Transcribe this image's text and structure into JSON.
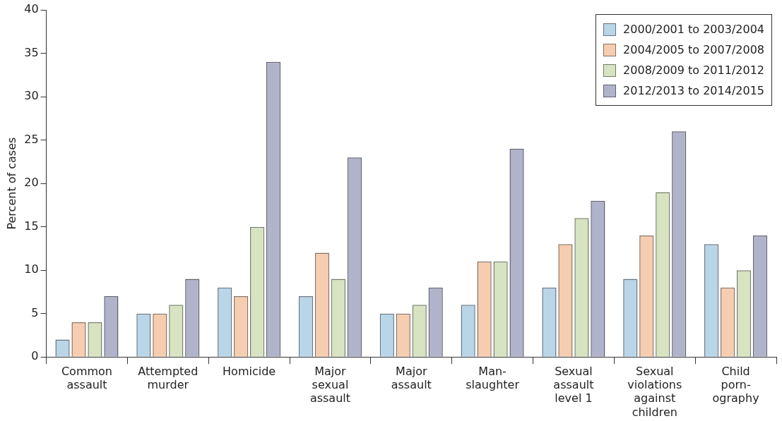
{
  "chart_data": {
    "type": "bar",
    "ylabel": "Percent of cases",
    "categories": [
      "Common\nassault",
      "Attempted\nmurder",
      "Homicide",
      "Major\nsexual\nassault",
      "Major\nassault",
      "Man-\nslaughter",
      "Sexual\nassault\nlevel 1",
      "Sexual\nviolations\nagainst\nchildren",
      "Child\nporn-\nography"
    ],
    "series": [
      {
        "name": "2000/2001 to 2003/2004",
        "color": "#b9d5e8",
        "values": [
          2,
          5,
          8,
          7,
          5,
          6,
          8,
          9,
          13
        ]
      },
      {
        "name": "2004/2005 to 2007/2008",
        "color": "#f6cdb0",
        "values": [
          4,
          5,
          7,
          12,
          5,
          11,
          13,
          14,
          8
        ]
      },
      {
        "name": "2008/2009 to 2011/2012",
        "color": "#d7e3c1",
        "values": [
          4,
          6,
          15,
          9,
          6,
          11,
          16,
          19,
          10
        ]
      },
      {
        "name": "2012/2013 to 2014/2015",
        "color": "#b0b3ca",
        "values": [
          7,
          9,
          34,
          23,
          8,
          24,
          18,
          26,
          14
        ]
      }
    ],
    "ylim": [
      0,
      40
    ],
    "yticks": [
      0,
      5,
      10,
      15,
      20,
      25,
      30,
      35,
      40
    ],
    "grid": false,
    "legend": "top right"
  }
}
